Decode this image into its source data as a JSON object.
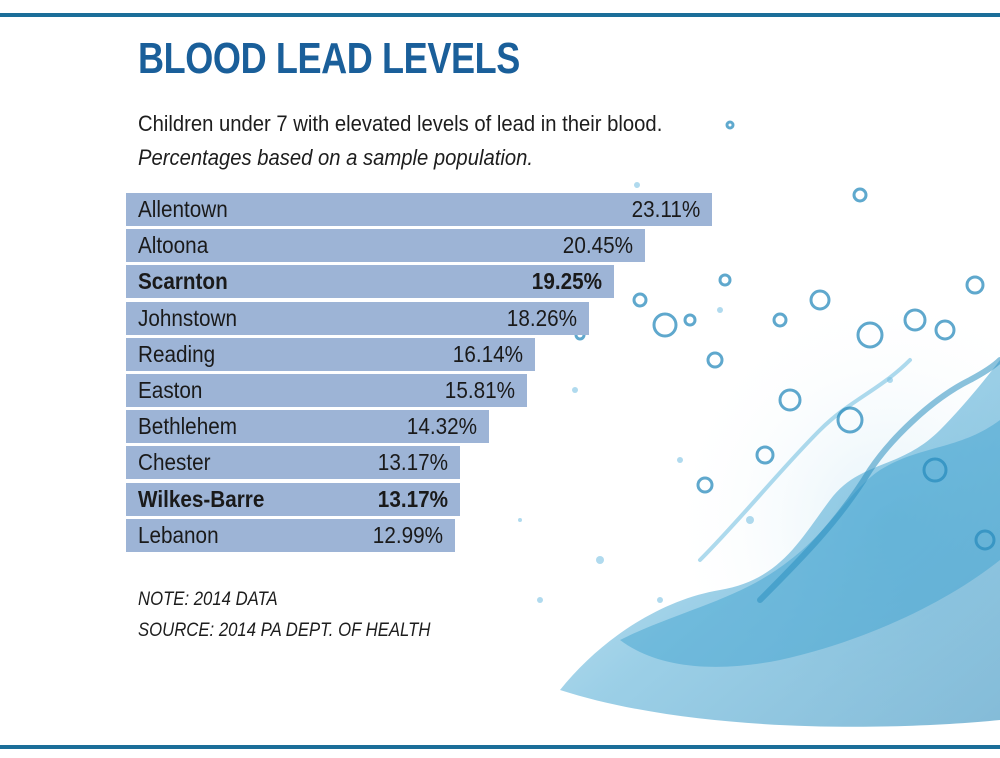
{
  "colors": {
    "rule": "#1b6e99",
    "title": "#1a5f9a",
    "bar": "#9db4d6",
    "bar_highlight_text": "#111111",
    "water": "#2a93c4"
  },
  "header": {
    "title": "BLOOD LEAD LEVELS",
    "subtitle": "Children under 7 with elevated levels of lead in their blood.",
    "subtitle_italic": "Percentages based on a sample population."
  },
  "chart_data": {
    "type": "bar",
    "orientation": "horizontal",
    "title": "BLOOD LEAD LEVELS",
    "categories": [
      "Allentown",
      "Altoona",
      "Scarnton",
      "Johnstown",
      "Reading",
      "Easton",
      "Bethlehem",
      "Chester",
      "Wilkes-Barre",
      "Lebanon"
    ],
    "values": [
      23.11,
      20.45,
      19.25,
      18.26,
      16.14,
      15.81,
      14.32,
      13.17,
      13.17,
      12.99
    ],
    "value_labels": [
      "23.11%",
      "20.45%",
      "19.25%",
      "18.26%",
      "16.14%",
      "15.81%",
      "14.32%",
      "13.17%",
      "13.17%",
      "12.99%"
    ],
    "highlighted": [
      "Scarnton",
      "Wilkes-Barre"
    ],
    "xlim": [
      0,
      23.11
    ],
    "grid": false,
    "legend": "none"
  },
  "footer": {
    "note": "NOTE: 2014 DATA",
    "source": "SOURCE: 2014 PA DEPT. OF HEALTH"
  },
  "decoration": {
    "background_image": "water-splash-image"
  }
}
